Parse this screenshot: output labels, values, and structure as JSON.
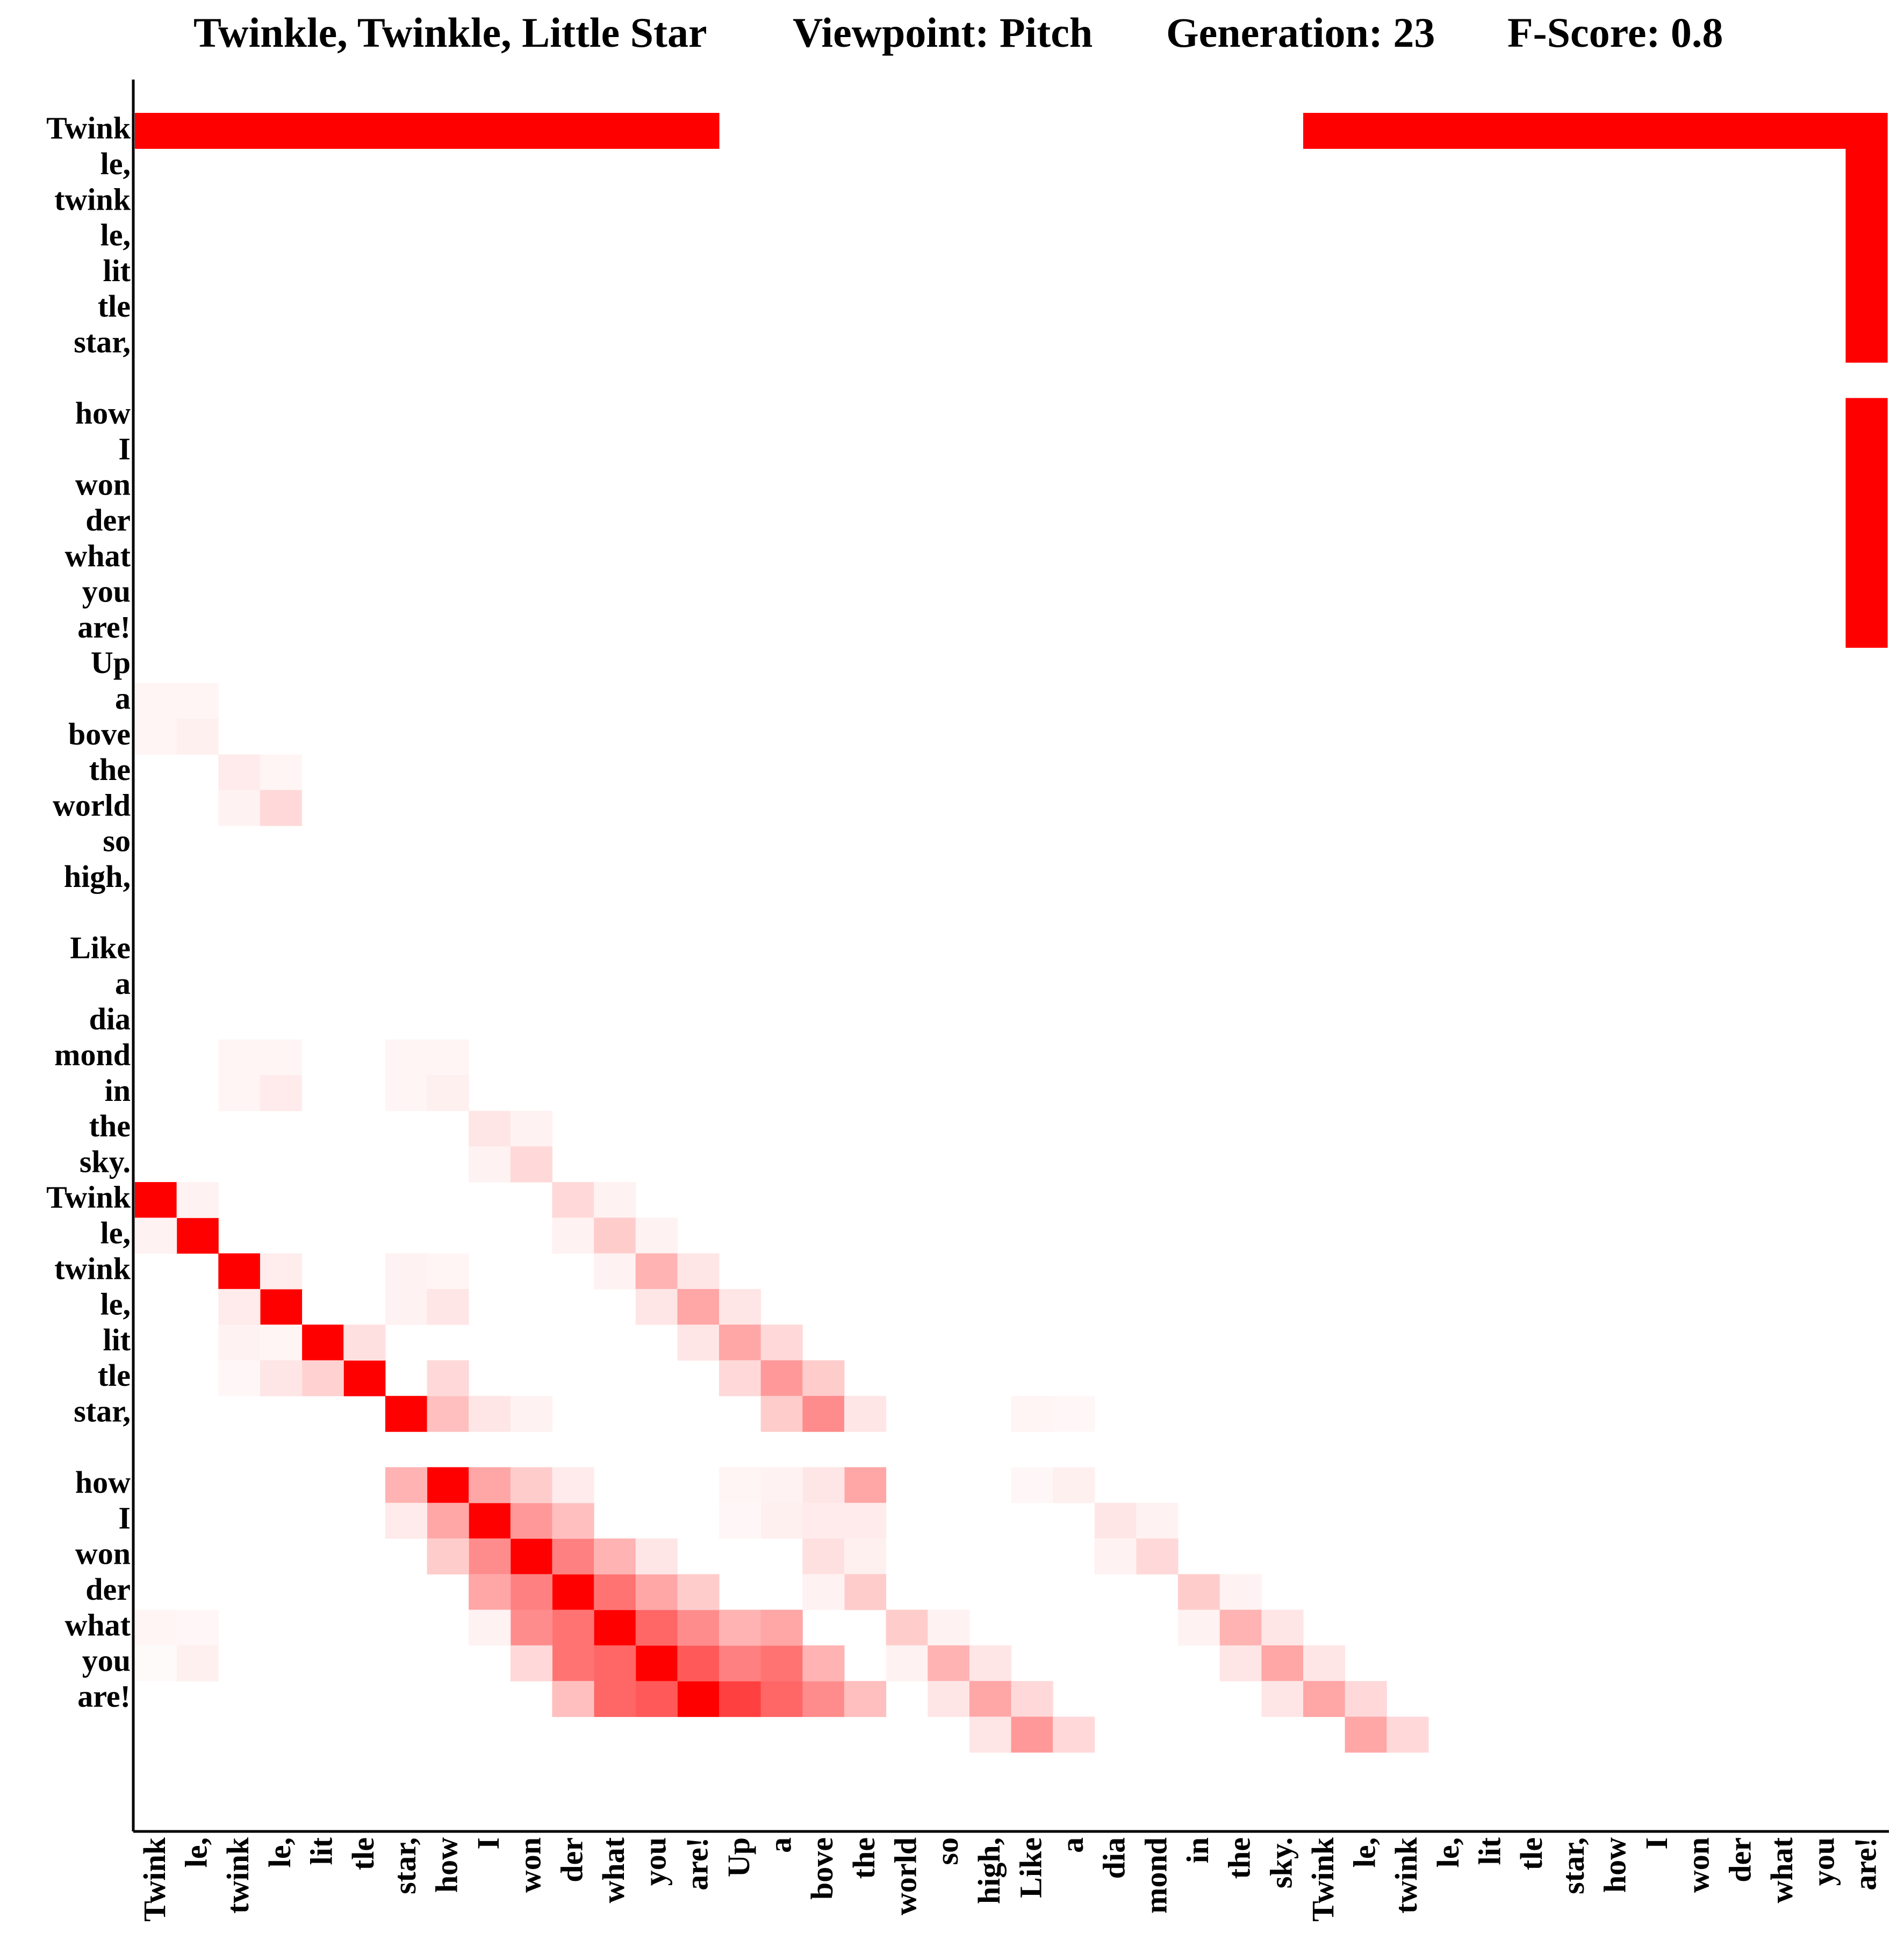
{
  "header": {
    "song": "Twinkle, Twinkle, Little Star",
    "viewpoint": "Viewpoint: Pitch",
    "generation": "Generation: 23",
    "fscore": "F-Score: 0.8"
  },
  "chart_data": {
    "type": "heatmap",
    "colors": {
      "high": "#ff0000",
      "low": "#ffffff",
      "axis": "#000000"
    },
    "x_tokens": [
      "Twink",
      "le,",
      "twink",
      "le,",
      "lit",
      "tle",
      "star,",
      "how",
      "I",
      "won",
      "der",
      "what",
      "you",
      "are!",
      "Up",
      "a",
      "bove",
      "the",
      "world",
      "so",
      "high,",
      "Like",
      "a",
      "dia",
      "mond",
      "in",
      "the",
      "sky.",
      "Twink",
      "le,",
      "twink",
      "le,",
      "lit",
      "tle",
      "star,",
      "how",
      "I",
      "won",
      "der",
      "what",
      "you",
      "are!"
    ],
    "y_tokens": [
      "Twink",
      "le,",
      "twink",
      "le,",
      "lit",
      "tle",
      "star,",
      "how",
      "I",
      "won",
      "der",
      "what",
      "you",
      "are!",
      "Up",
      "a",
      "bove",
      "the",
      "world",
      "so",
      "high,",
      "Like",
      "a",
      "dia",
      "mond",
      "in",
      "the",
      "sky.",
      "Twink",
      "le,",
      "twink",
      "le,",
      "lit",
      "tle",
      "star,",
      "how",
      "I",
      "won",
      "der",
      "what",
      "you",
      "are!"
    ],
    "line_breaks_after": [
      6,
      20,
      34
    ],
    "cells": [
      [
        0,
        0,
        1
      ],
      [
        1,
        0,
        1
      ],
      [
        2,
        0,
        1
      ],
      [
        3,
        0,
        1
      ],
      [
        4,
        0,
        1
      ],
      [
        5,
        0,
        1
      ],
      [
        6,
        0,
        1
      ],
      [
        7,
        0,
        1
      ],
      [
        8,
        0,
        1
      ],
      [
        9,
        0,
        1
      ],
      [
        10,
        0,
        1
      ],
      [
        11,
        0,
        1
      ],
      [
        12,
        0,
        1
      ],
      [
        13,
        0,
        1
      ],
      [
        28,
        0,
        1
      ],
      [
        29,
        0,
        1
      ],
      [
        30,
        0,
        1
      ],
      [
        31,
        0,
        1
      ],
      [
        32,
        0,
        1
      ],
      [
        33,
        0,
        1
      ],
      [
        34,
        0,
        1
      ],
      [
        35,
        0,
        1
      ],
      [
        36,
        0,
        1
      ],
      [
        37,
        0,
        1
      ],
      [
        38,
        0,
        1
      ],
      [
        39,
        0,
        1
      ],
      [
        40,
        0,
        1
      ],
      [
        41,
        0,
        1
      ],
      [
        41,
        1,
        1
      ],
      [
        41,
        2,
        1
      ],
      [
        41,
        3,
        1
      ],
      [
        41,
        4,
        1
      ],
      [
        41,
        5,
        1
      ],
      [
        41,
        6,
        1
      ],
      [
        41,
        7,
        1
      ],
      [
        41,
        8,
        1
      ],
      [
        41,
        9,
        1
      ],
      [
        41,
        10,
        1
      ],
      [
        41,
        11,
        1
      ],
      [
        41,
        12,
        1
      ],
      [
        41,
        13,
        1
      ],
      [
        0,
        28,
        1
      ],
      [
        1,
        29,
        1
      ],
      [
        2,
        30,
        1
      ],
      [
        3,
        31,
        1
      ],
      [
        4,
        32,
        1
      ],
      [
        5,
        33,
        1
      ],
      [
        6,
        34,
        1
      ],
      [
        7,
        35,
        1
      ],
      [
        8,
        36,
        1
      ],
      [
        9,
        37,
        1
      ],
      [
        10,
        38,
        1
      ],
      [
        11,
        39,
        1
      ],
      [
        12,
        40,
        1
      ],
      [
        13,
        41,
        1
      ],
      [
        14,
        41,
        0.75
      ],
      [
        15,
        41,
        0.6
      ],
      [
        16,
        41,
        0.45
      ],
      [
        17,
        41,
        0.25
      ],
      [
        0,
        29,
        0.05
      ],
      [
        1,
        28,
        0.05
      ],
      [
        2,
        31,
        0.08
      ],
      [
        3,
        30,
        0.07
      ],
      [
        4,
        33,
        0.18
      ],
      [
        5,
        32,
        0.12
      ],
      [
        6,
        35,
        0.3
      ],
      [
        7,
        34,
        0.25
      ],
      [
        7,
        36,
        0.35
      ],
      [
        8,
        35,
        0.35
      ],
      [
        8,
        37,
        0.45
      ],
      [
        9,
        36,
        0.4
      ],
      [
        9,
        38,
        0.5
      ],
      [
        10,
        37,
        0.5
      ],
      [
        10,
        39,
        0.55
      ],
      [
        11,
        38,
        0.55
      ],
      [
        11,
        40,
        0.6
      ],
      [
        12,
        39,
        0.6
      ],
      [
        12,
        41,
        0.65
      ],
      [
        13,
        40,
        0.65
      ],
      [
        6,
        36,
        0.08
      ],
      [
        7,
        37,
        0.2
      ],
      [
        8,
        38,
        0.35
      ],
      [
        9,
        39,
        0.45
      ],
      [
        10,
        40,
        0.55
      ],
      [
        11,
        41,
        0.6
      ],
      [
        8,
        39,
        0.05
      ],
      [
        9,
        40,
        0.15
      ],
      [
        10,
        41,
        0.25
      ],
      [
        7,
        33,
        0.15
      ],
      [
        8,
        34,
        0.1
      ],
      [
        9,
        35,
        0.2
      ],
      [
        10,
        36,
        0.25
      ],
      [
        11,
        37,
        0.3
      ],
      [
        12,
        38,
        0.35
      ],
      [
        13,
        39,
        0.45
      ],
      [
        14,
        40,
        0.5
      ],
      [
        15,
        40,
        0.55
      ],
      [
        16,
        40,
        0.3
      ],
      [
        9,
        34,
        0.05
      ],
      [
        10,
        35,
        0.08
      ],
      [
        12,
        37,
        0.1
      ],
      [
        13,
        38,
        0.2
      ],
      [
        14,
        39,
        0.3
      ],
      [
        15,
        39,
        0.35
      ],
      [
        0,
        15,
        0.04
      ],
      [
        0,
        16,
        0.04
      ],
      [
        1,
        15,
        0.04
      ],
      [
        1,
        16,
        0.06
      ],
      [
        0,
        39,
        0.04
      ],
      [
        0,
        40,
        0.02
      ],
      [
        1,
        39,
        0.03
      ],
      [
        1,
        40,
        0.06
      ],
      [
        2,
        17,
        0.08
      ],
      [
        2,
        18,
        0.05
      ],
      [
        3,
        17,
        0.04
      ],
      [
        3,
        18,
        0.15
      ],
      [
        2,
        24,
        0.04
      ],
      [
        2,
        25,
        0.04
      ],
      [
        3,
        24,
        0.04
      ],
      [
        3,
        25,
        0.08
      ],
      [
        2,
        32,
        0.05
      ],
      [
        2,
        33,
        0.03
      ],
      [
        3,
        32,
        0.04
      ],
      [
        3,
        33,
        0.1
      ],
      [
        6,
        24,
        0.04
      ],
      [
        6,
        25,
        0.04
      ],
      [
        7,
        24,
        0.04
      ],
      [
        7,
        25,
        0.06
      ],
      [
        6,
        30,
        0.05
      ],
      [
        6,
        31,
        0.05
      ],
      [
        7,
        30,
        0.04
      ],
      [
        7,
        31,
        0.1
      ],
      [
        8,
        26,
        0.1
      ],
      [
        8,
        27,
        0.05
      ],
      [
        9,
        26,
        0.05
      ],
      [
        9,
        27,
        0.15
      ],
      [
        10,
        28,
        0.15
      ],
      [
        10,
        29,
        0.05
      ],
      [
        11,
        28,
        0.05
      ],
      [
        11,
        29,
        0.2
      ],
      [
        11,
        30,
        0.05
      ],
      [
        12,
        29,
        0.05
      ],
      [
        12,
        30,
        0.3
      ],
      [
        12,
        31,
        0.1
      ],
      [
        13,
        30,
        0.1
      ],
      [
        13,
        31,
        0.35
      ],
      [
        13,
        32,
        0.1
      ],
      [
        14,
        31,
        0.1
      ],
      [
        14,
        32,
        0.35
      ],
      [
        14,
        33,
        0.15
      ],
      [
        15,
        32,
        0.15
      ],
      [
        15,
        33,
        0.4
      ],
      [
        15,
        34,
        0.2
      ],
      [
        16,
        33,
        0.2
      ],
      [
        16,
        34,
        0.45
      ],
      [
        16,
        35,
        0.15
      ],
      [
        17,
        34,
        0.1
      ],
      [
        17,
        35,
        0.35
      ],
      [
        15,
        36,
        0.06
      ],
      [
        16,
        35,
        0.1
      ],
      [
        16,
        36,
        0.08
      ],
      [
        15,
        35,
        0.05
      ],
      [
        14,
        35,
        0.04
      ],
      [
        14,
        36,
        0.03
      ],
      [
        17,
        36,
        0.08
      ],
      [
        16,
        37,
        0.12
      ],
      [
        17,
        37,
        0.06
      ],
      [
        17,
        38,
        0.2
      ],
      [
        16,
        38,
        0.05
      ],
      [
        18,
        39,
        0.2
      ],
      [
        18,
        40,
        0.05
      ],
      [
        19,
        39,
        0.05
      ],
      [
        19,
        40,
        0.3
      ],
      [
        19,
        41,
        0.1
      ],
      [
        20,
        40,
        0.1
      ],
      [
        20,
        41,
        0.35
      ],
      [
        20,
        42,
        0.1
      ],
      [
        21,
        41,
        0.15
      ],
      [
        21,
        42,
        0.4
      ],
      [
        22,
        42,
        0.15
      ],
      [
        21,
        34,
        0.04
      ],
      [
        21,
        35,
        0.03
      ],
      [
        22,
        34,
        0.03
      ],
      [
        22,
        35,
        0.06
      ],
      [
        23,
        36,
        0.1
      ],
      [
        23,
        37,
        0.05
      ],
      [
        24,
        36,
        0.05
      ],
      [
        24,
        37,
        0.15
      ],
      [
        25,
        38,
        0.2
      ],
      [
        25,
        39,
        0.05
      ],
      [
        26,
        38,
        0.05
      ],
      [
        26,
        39,
        0.3
      ],
      [
        26,
        40,
        0.1
      ],
      [
        27,
        39,
        0.1
      ],
      [
        27,
        40,
        0.35
      ],
      [
        27,
        41,
        0.1
      ],
      [
        28,
        40,
        0.1
      ],
      [
        28,
        41,
        0.35
      ],
      [
        29,
        41,
        0.15
      ],
      [
        29,
        42,
        0.35
      ],
      [
        30,
        42,
        0.15
      ]
    ]
  }
}
